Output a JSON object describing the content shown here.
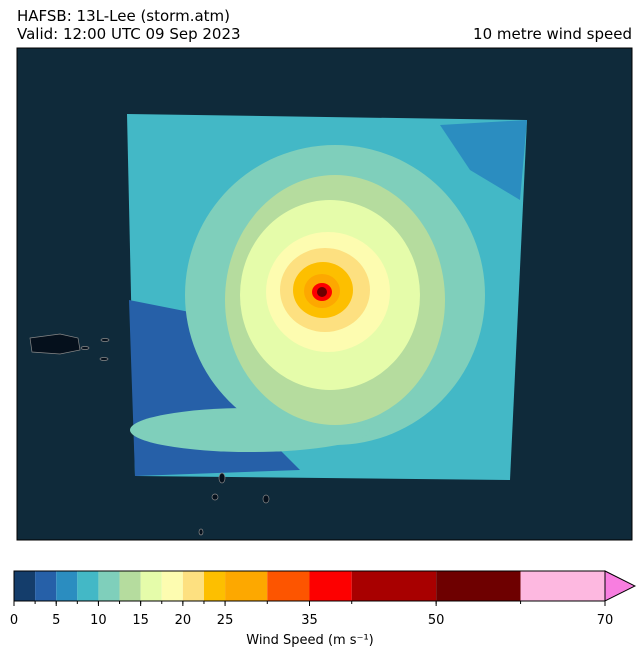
{
  "header": {
    "title": "HAFSB: 13L-Lee (storm.atm)",
    "valid": "Valid: 12:00 UTC 09 Sep 2023",
    "field": "10 metre wind speed"
  },
  "colorbar": {
    "label": "Wind Speed (m s⁻¹)",
    "bounds": [
      0,
      2.5,
      5,
      7.5,
      10,
      12.5,
      15,
      17.5,
      20,
      22.5,
      25,
      30,
      35,
      40,
      50,
      60,
      70
    ],
    "colors": [
      "#143d6b",
      "#2660a8",
      "#2b8dc0",
      "#43b8c6",
      "#7fcfbb",
      "#b5dc9e",
      "#e5fcaa",
      "#fdfcb0",
      "#fde080",
      "#fdbf00",
      "#fda800",
      "#fd5500",
      "#fd0000",
      "#a80000",
      "#6e0000",
      "#fdb8e0"
    ],
    "extend_color": "#f87ee0",
    "ticks": [
      0,
      5,
      10,
      15,
      20,
      25,
      35,
      50,
      70
    ]
  }
}
